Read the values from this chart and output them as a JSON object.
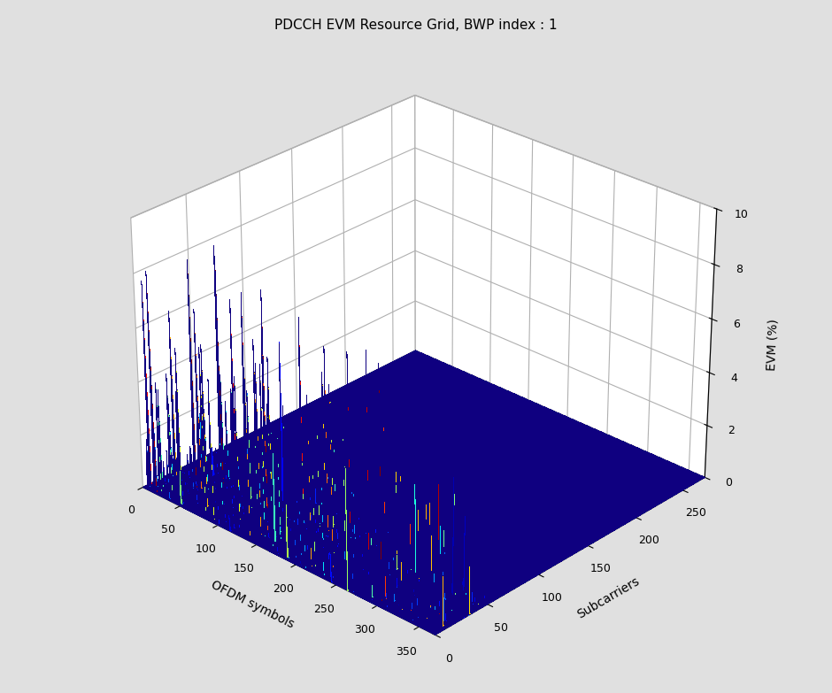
{
  "title": "PDCCH EVM Resource Grid, BWP index : 1",
  "xlabel": "OFDM symbols",
  "ylabel": "Subcarriers",
  "zlabel": "EVM (%)",
  "n_ofdm": 370,
  "n_subcarriers": 275,
  "zlim": [
    0,
    10
  ],
  "zticks": [
    0,
    2,
    4,
    6,
    8,
    10
  ],
  "x_ticks": [
    0,
    50,
    100,
    150,
    200,
    250,
    300,
    350
  ],
  "y_ticks": [
    0,
    50,
    100,
    150,
    200,
    250
  ],
  "bg_color": "#e0e0e0",
  "spike_max": 8.5,
  "figure_width": 9.4,
  "figure_height": 7.83,
  "elev": 28,
  "azim": -47,
  "seed": 12345
}
